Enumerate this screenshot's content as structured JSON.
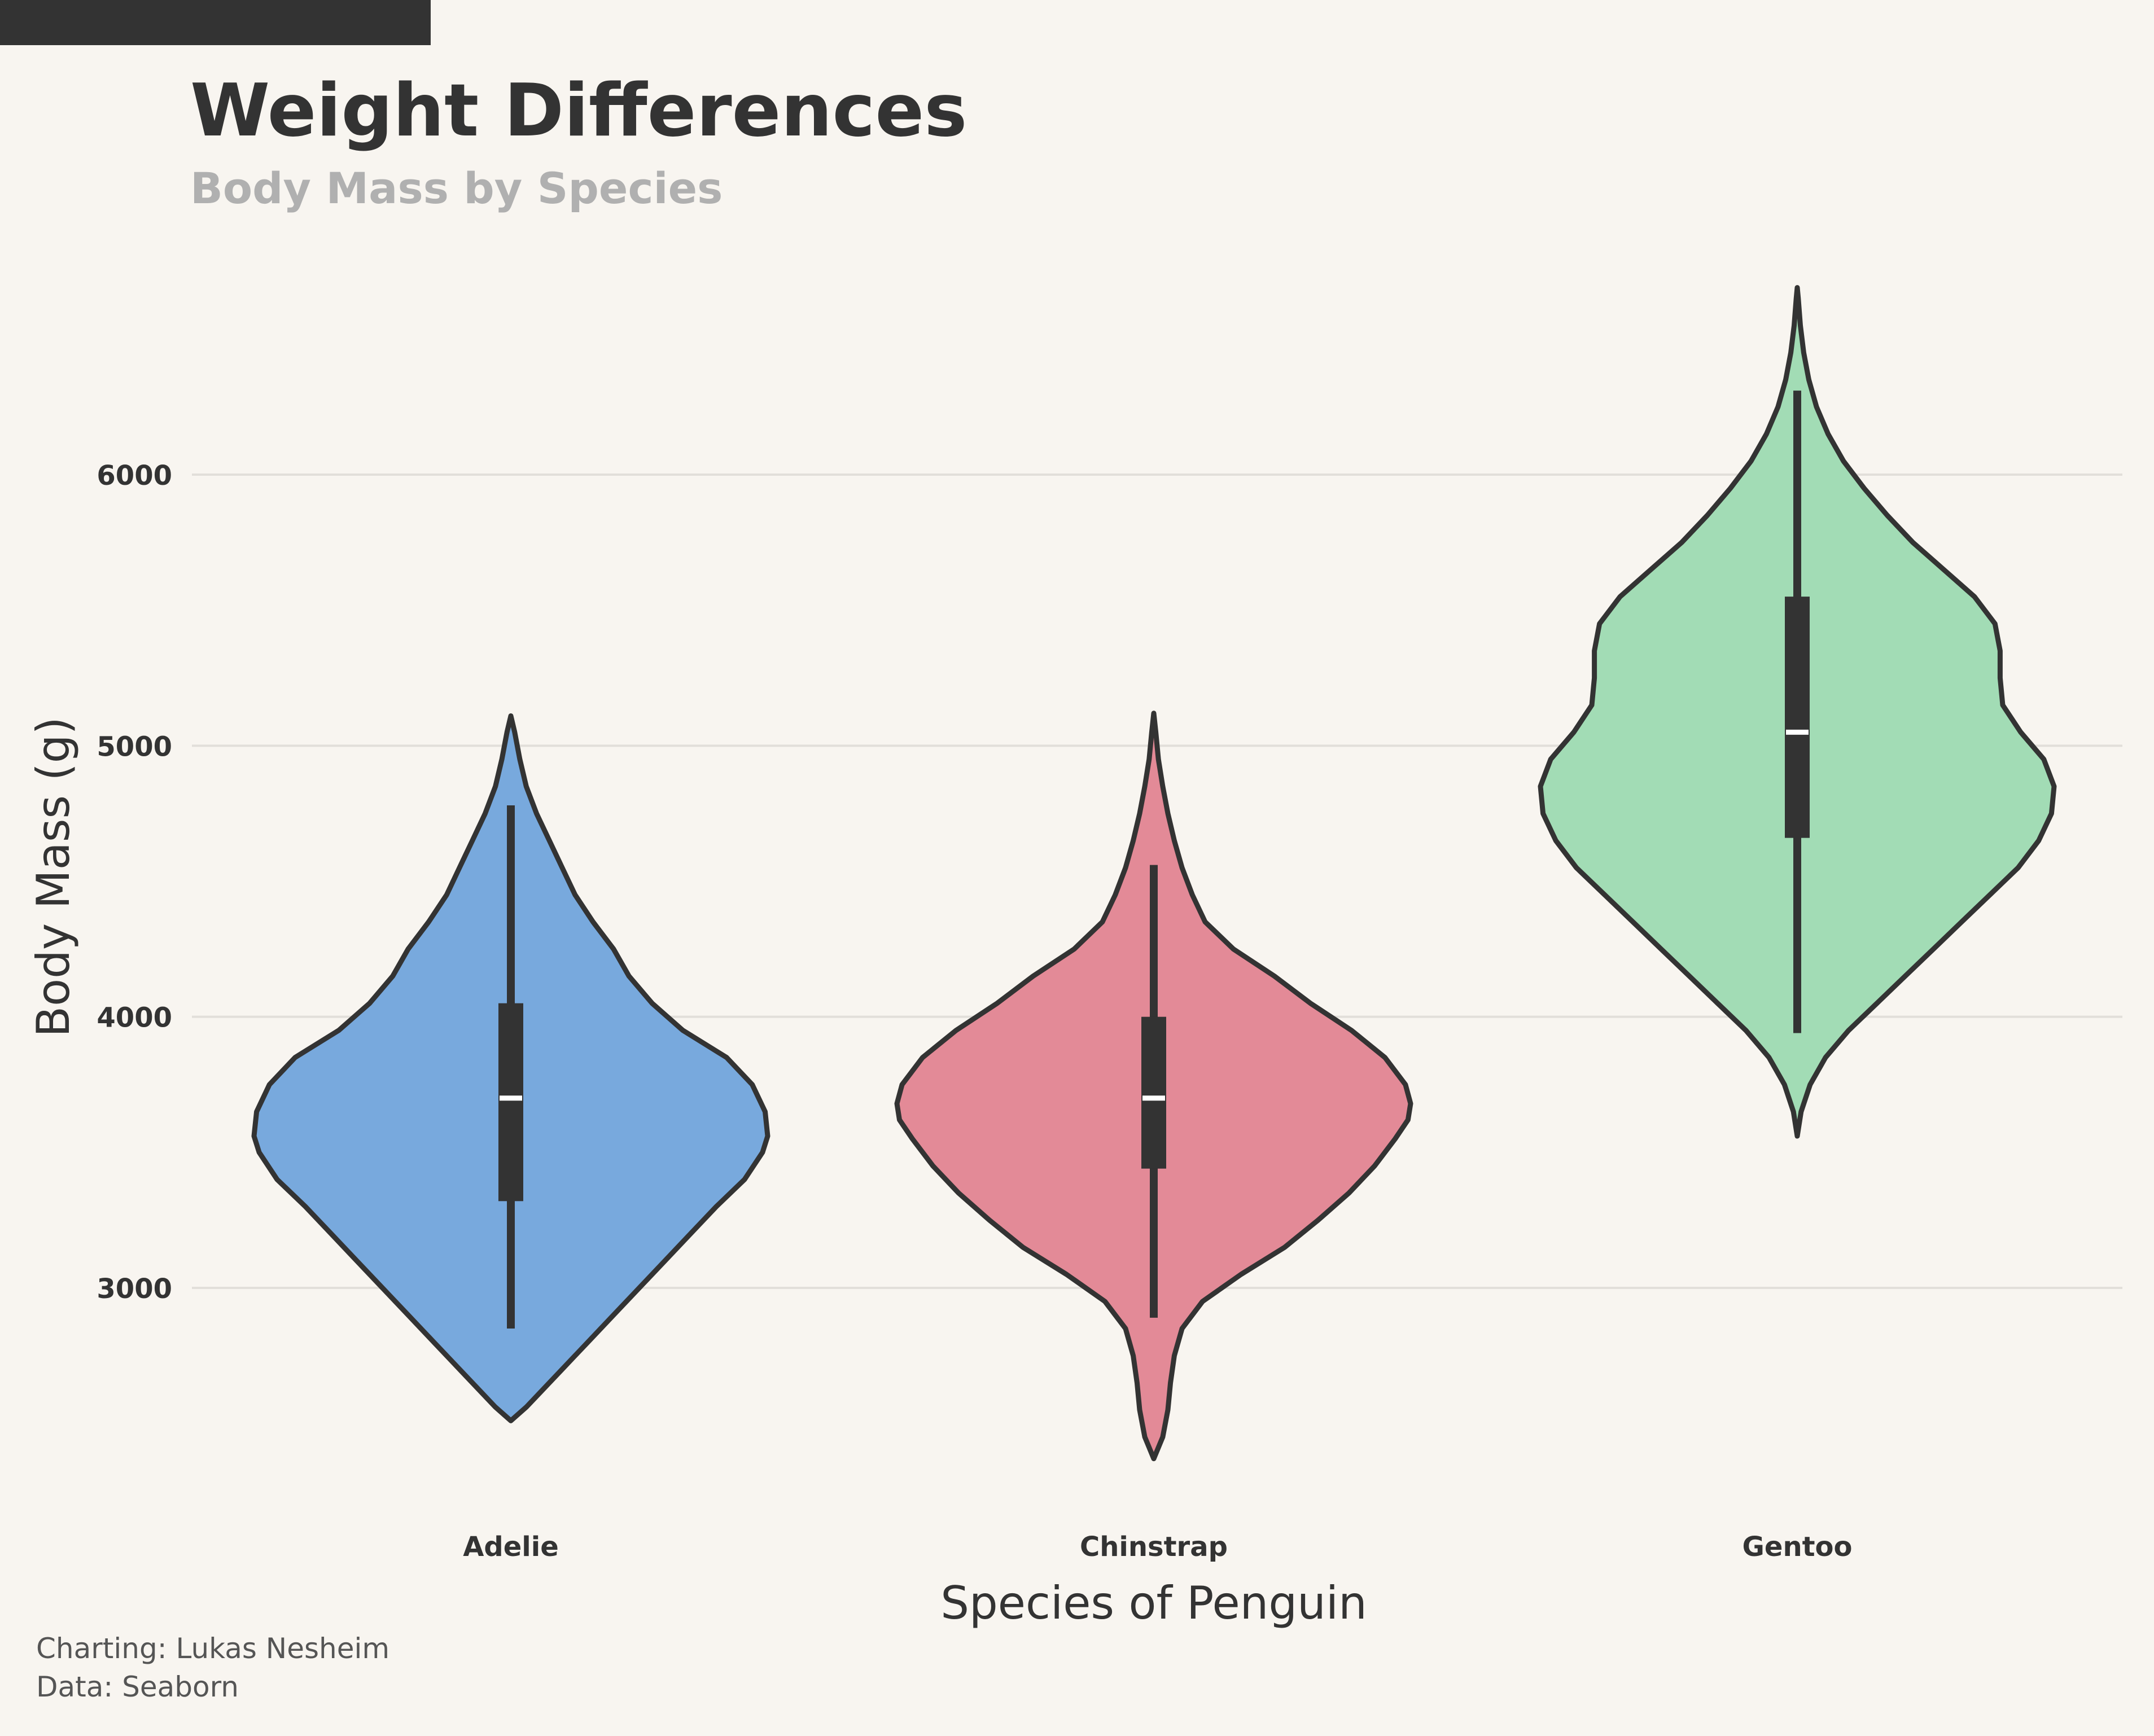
{
  "chart_data": {
    "type": "violin",
    "title": "Weight Differences",
    "subtitle": "Body Mass by Species",
    "xlabel": "Species of Penguin",
    "ylabel": "Body Mass (g)",
    "categories": [
      "Adelie",
      "Chinstrap",
      "Gentoo"
    ],
    "yticks": [
      3000,
      4000,
      5000,
      6000
    ],
    "ylim": [
      2200,
      6900
    ],
    "grid": "horizontal",
    "colors": {
      "Adelie": "#78a9dd",
      "Chinstrap": "#e38a97",
      "Gentoo": "#a2dcb5",
      "outline": "#333333",
      "grid": "#e2dfda",
      "background": "#f8f5f0",
      "title": "#333333",
      "subtitle": "#b0b0b0"
    },
    "series": [
      {
        "category": "Adelie",
        "min": 2850,
        "q1": 3320,
        "median": 3700,
        "q3": 4050,
        "max": 4780,
        "kde_min": 2510,
        "kde_max": 5110,
        "density": [
          [
            2510,
            0.0
          ],
          [
            2560,
            0.06
          ],
          [
            2620,
            0.12
          ],
          [
            2700,
            0.2
          ],
          [
            2800,
            0.3
          ],
          [
            2900,
            0.4
          ],
          [
            3000,
            0.5
          ],
          [
            3100,
            0.6
          ],
          [
            3200,
            0.7
          ],
          [
            3300,
            0.8
          ],
          [
            3400,
            0.91
          ],
          [
            3500,
            0.98
          ],
          [
            3560,
            1.0
          ],
          [
            3650,
            0.99
          ],
          [
            3750,
            0.94
          ],
          [
            3850,
            0.84
          ],
          [
            3950,
            0.67
          ],
          [
            4050,
            0.55
          ],
          [
            4150,
            0.46
          ],
          [
            4250,
            0.4
          ],
          [
            4350,
            0.32
          ],
          [
            4450,
            0.25
          ],
          [
            4550,
            0.2
          ],
          [
            4650,
            0.15
          ],
          [
            4750,
            0.1
          ],
          [
            4850,
            0.06
          ],
          [
            4950,
            0.035
          ],
          [
            5050,
            0.015
          ],
          [
            5110,
            0.0
          ]
        ]
      },
      {
        "category": "Chinstrap",
        "min": 2890,
        "q1": 3440,
        "median": 3700,
        "q3": 4000,
        "max": 4560,
        "kde_min": 2370,
        "kde_max": 5120,
        "density": [
          [
            2370,
            0.0
          ],
          [
            2450,
            0.035
          ],
          [
            2550,
            0.055
          ],
          [
            2650,
            0.065
          ],
          [
            2750,
            0.08
          ],
          [
            2850,
            0.11
          ],
          [
            2950,
            0.19
          ],
          [
            3050,
            0.34
          ],
          [
            3150,
            0.51
          ],
          [
            3250,
            0.64
          ],
          [
            3350,
            0.76
          ],
          [
            3450,
            0.86
          ],
          [
            3550,
            0.94
          ],
          [
            3620,
            0.99
          ],
          [
            3680,
            1.0
          ],
          [
            3750,
            0.98
          ],
          [
            3850,
            0.9
          ],
          [
            3950,
            0.77
          ],
          [
            4050,
            0.61
          ],
          [
            4150,
            0.47
          ],
          [
            4250,
            0.31
          ],
          [
            4350,
            0.2
          ],
          [
            4450,
            0.15
          ],
          [
            4550,
            0.11
          ],
          [
            4650,
            0.08
          ],
          [
            4750,
            0.055
          ],
          [
            4850,
            0.035
          ],
          [
            4950,
            0.018
          ],
          [
            5050,
            0.008
          ],
          [
            5120,
            0.0
          ]
        ]
      },
      {
        "category": "Gentoo",
        "min": 3940,
        "q1": 4660,
        "median": 5050,
        "q3": 5550,
        "max": 6310,
        "kde_min": 3560,
        "kde_max": 6690,
        "density": [
          [
            3560,
            0.0
          ],
          [
            3650,
            0.015
          ],
          [
            3750,
            0.05
          ],
          [
            3850,
            0.11
          ],
          [
            3950,
            0.2
          ],
          [
            4050,
            0.31
          ],
          [
            4150,
            0.42
          ],
          [
            4250,
            0.53
          ],
          [
            4350,
            0.64
          ],
          [
            4450,
            0.75
          ],
          [
            4550,
            0.86
          ],
          [
            4650,
            0.94
          ],
          [
            4750,
            0.99
          ],
          [
            4850,
            1.0
          ],
          [
            4950,
            0.96
          ],
          [
            5050,
            0.87
          ],
          [
            5150,
            0.8
          ],
          [
            5250,
            0.79
          ],
          [
            5350,
            0.79
          ],
          [
            5450,
            0.77
          ],
          [
            5550,
            0.69
          ],
          [
            5650,
            0.57
          ],
          [
            5750,
            0.45
          ],
          [
            5850,
            0.35
          ],
          [
            5950,
            0.26
          ],
          [
            6050,
            0.18
          ],
          [
            6150,
            0.12
          ],
          [
            6250,
            0.075
          ],
          [
            6350,
            0.045
          ],
          [
            6450,
            0.025
          ],
          [
            6550,
            0.012
          ],
          [
            6650,
            0.004
          ],
          [
            6690,
            0.0
          ]
        ]
      }
    ]
  },
  "credits": {
    "charting": "Charting: Lukas Nesheim",
    "data": "Data: Seaborn"
  }
}
